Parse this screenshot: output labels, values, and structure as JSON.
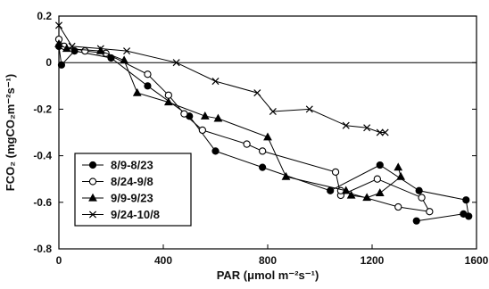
{
  "chart_data": {
    "type": "line",
    "xlabel": "PAR (μmol m⁻²s⁻¹)",
    "ylabel": "FCO₂ (mgCO₂m⁻²s⁻¹)",
    "xlim": [
      0,
      1600
    ],
    "ylim": [
      -0.8,
      0.2
    ],
    "xticks": [
      "0",
      "400",
      "800",
      "1200",
      "1600"
    ],
    "yticks": [
      "0.2",
      "0",
      "-0.2",
      "-0.4",
      "-0.6",
      "-0.8"
    ],
    "reference_line_y": 0,
    "legend_position": "lower-left",
    "series": [
      {
        "name": "8/9-8/23",
        "marker": "filled-circle",
        "x": [
          0,
          10,
          60,
          200,
          340,
          500,
          600,
          780,
          1040,
          1230,
          1380,
          1560,
          1570,
          1550,
          1370
        ],
        "y": [
          0.07,
          -0.01,
          0.05,
          0.02,
          -0.1,
          -0.23,
          -0.38,
          -0.45,
          -0.55,
          -0.44,
          -0.55,
          -0.59,
          -0.66,
          -0.65,
          -0.68
        ]
      },
      {
        "name": "8/24-9/8",
        "marker": "open-circle",
        "x": [
          0,
          20,
          100,
          180,
          340,
          420,
          480,
          550,
          720,
          780,
          1060,
          1080,
          1220,
          1390,
          1420,
          1300,
          1080
        ],
        "y": [
          0.1,
          0.07,
          0.05,
          0.04,
          -0.05,
          -0.14,
          -0.22,
          -0.29,
          -0.35,
          -0.38,
          -0.47,
          -0.57,
          -0.5,
          -0.58,
          -0.64,
          -0.62,
          -0.55
        ]
      },
      {
        "name": "9/9-9/23",
        "marker": "filled-triangle",
        "x": [
          0,
          30,
          160,
          250,
          300,
          420,
          560,
          610,
          800,
          870,
          1100,
          1120,
          1180,
          1230,
          1310,
          1300
        ],
        "y": [
          0.08,
          0.06,
          0.05,
          0.01,
          -0.13,
          -0.17,
          -0.23,
          -0.24,
          -0.32,
          -0.49,
          -0.55,
          -0.57,
          -0.58,
          -0.56,
          -0.49,
          -0.45
        ]
      },
      {
        "name": "9/24-10/8",
        "marker": "x",
        "x": [
          0,
          50,
          160,
          260,
          450,
          600,
          760,
          820,
          960,
          1100,
          1180,
          1230,
          1250
        ],
        "y": [
          0.16,
          0.07,
          0.06,
          0.05,
          0.0,
          -0.08,
          -0.13,
          -0.21,
          -0.2,
          -0.27,
          -0.28,
          -0.3,
          -0.3
        ]
      }
    ]
  }
}
